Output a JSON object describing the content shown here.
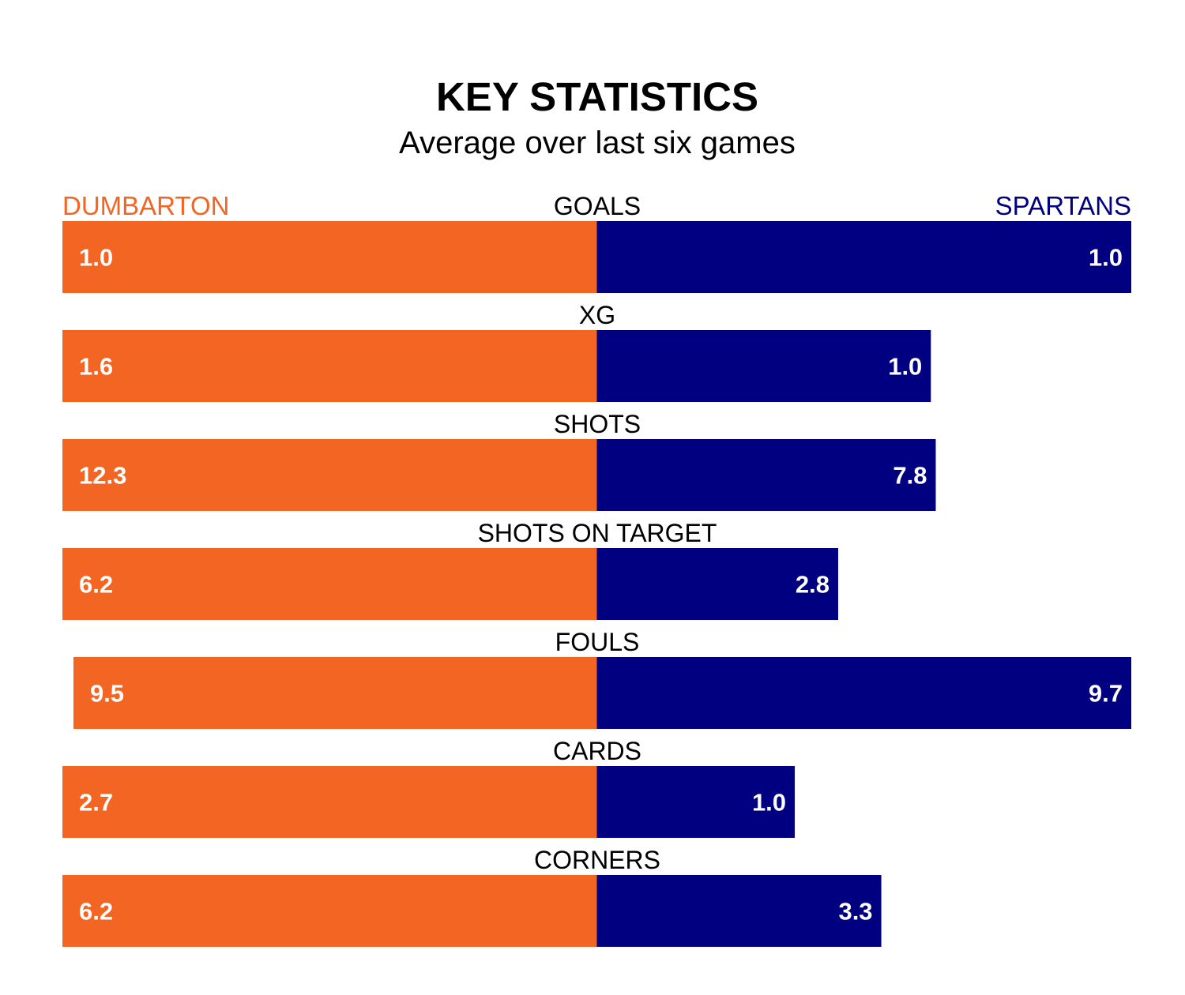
{
  "chart_data": {
    "type": "bar",
    "title": "KEY STATISTICS",
    "subtitle": "Average over last six games",
    "categories": [
      "GOALS",
      "XG",
      "SHOTS",
      "SHOTS ON TARGET",
      "FOULS",
      "CARDS",
      "CORNERS"
    ],
    "series": [
      {
        "name": "DUMBARTON",
        "color": "#F26522",
        "values": [
          1.0,
          1.6,
          12.3,
          6.2,
          9.5,
          2.7,
          6.2
        ]
      },
      {
        "name": "SPARTANS",
        "color": "#000080",
        "values": [
          1.0,
          1.0,
          7.8,
          2.8,
          9.7,
          1.0,
          3.3
        ]
      }
    ],
    "value_labels": {
      "DUMBARTON": [
        "1.0",
        "1.6",
        "12.3",
        "6.2",
        "9.5",
        "2.7",
        "6.2"
      ],
      "SPARTANS": [
        "1.0",
        "1.0",
        "7.8",
        "2.8",
        "9.7",
        "1.0",
        "3.3"
      ]
    },
    "orientation": "horizontal-diverging",
    "legend": "top",
    "grid": false
  }
}
